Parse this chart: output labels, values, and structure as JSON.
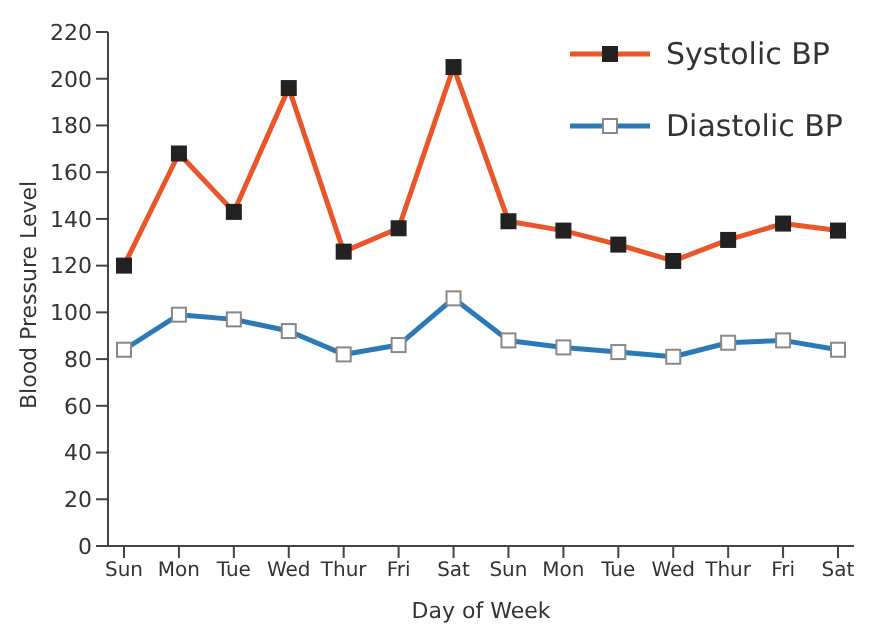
{
  "chart_data": {
    "type": "line",
    "xlabel": "Day of Week",
    "ylabel": "Blood Pressure Level",
    "categories": [
      "Sun",
      "Mon",
      "Tue",
      "Wed",
      "Thur",
      "Fri",
      "Sat",
      "Sun",
      "Mon",
      "Tue",
      "Wed",
      "Thur",
      "Fri",
      "Sat"
    ],
    "series": [
      {
        "name": "Systolic BP",
        "color": "#e8562a",
        "values": [
          120,
          168,
          143,
          196,
          126,
          136,
          205,
          139,
          135,
          129,
          122,
          131,
          138,
          135
        ]
      },
      {
        "name": "Diastolic BP",
        "color": "#2a7ab8",
        "values": [
          84,
          99,
          97,
          92,
          82,
          86,
          106,
          88,
          85,
          83,
          81,
          87,
          88,
          84
        ]
      }
    ],
    "ylim": [
      0,
      220
    ],
    "yticks": [
      0,
      20,
      40,
      60,
      80,
      100,
      120,
      140,
      160,
      180,
      200,
      220
    ],
    "grid": false,
    "legend": "top right",
    "marker": "square",
    "line_style": "solid"
  }
}
